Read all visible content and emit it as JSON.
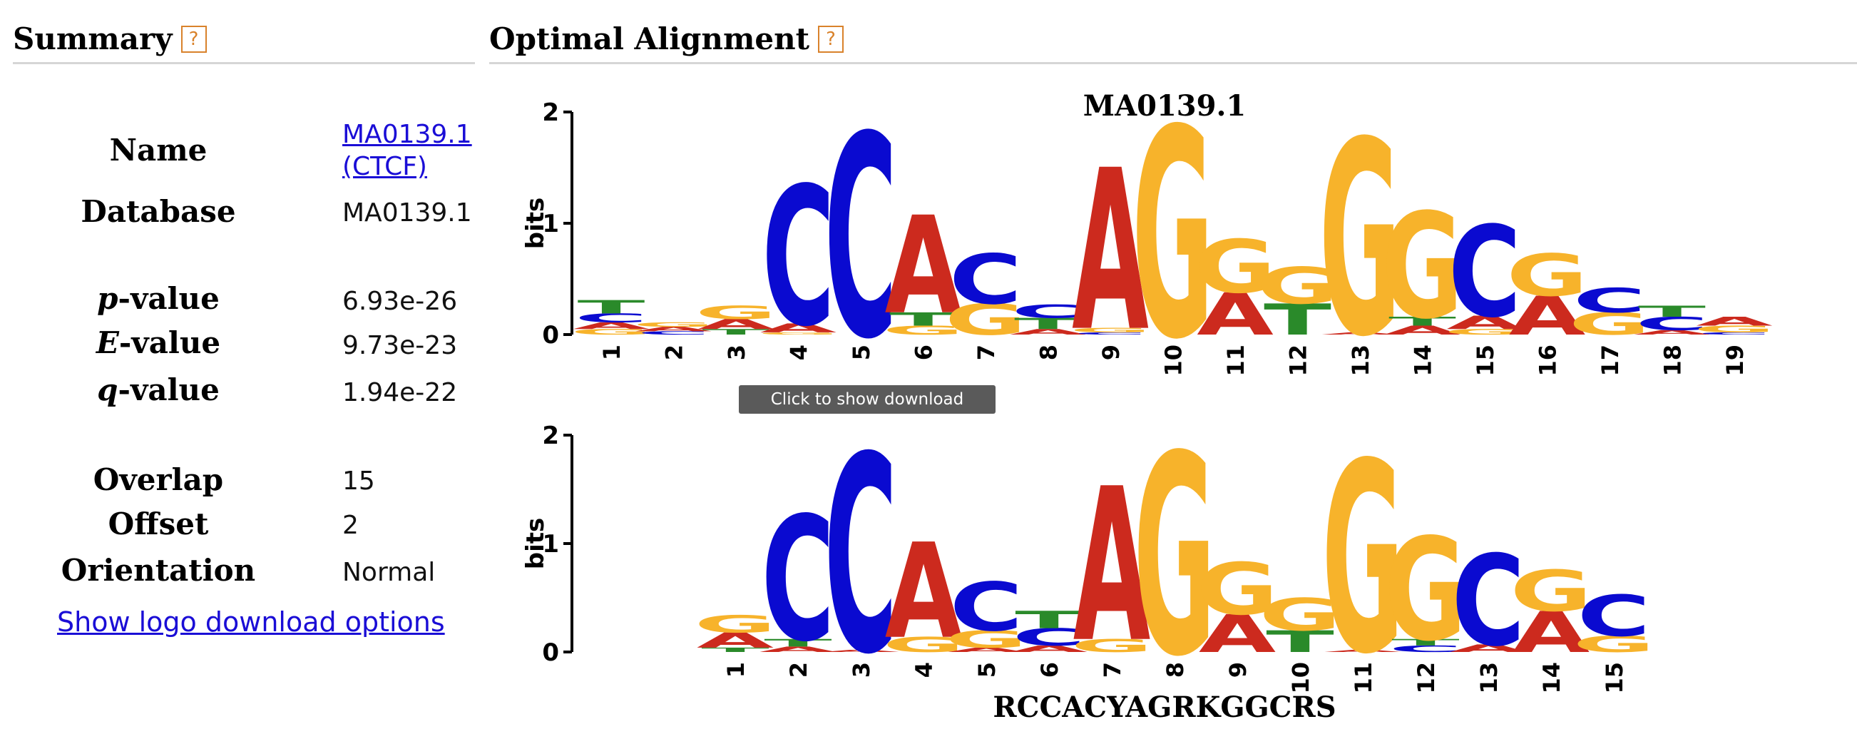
{
  "summary": {
    "title": "Summary",
    "help_glyph": "?",
    "name_label": "Name",
    "name_link_line1": "MA0139.1",
    "name_link_line2": "(CTCF)",
    "database_label": "Database",
    "database_value": "MA0139.1",
    "pvalue_prefix": "p",
    "pvalue_suffix": "-value",
    "pvalue": "6.93e-26",
    "evalue_prefix": "E",
    "evalue_suffix": "-value",
    "evalue": "9.73e-23",
    "qvalue_prefix": "q",
    "qvalue_suffix": "-value",
    "qvalue": "1.94e-22",
    "overlap_label": "Overlap",
    "overlap": "15",
    "offset_label": "Offset",
    "offset": "2",
    "orientation_label": "Orientation",
    "orientation": "Normal",
    "download_link": "Show logo download options"
  },
  "alignment": {
    "title": "Optimal Alignment",
    "help_glyph": "?",
    "tooltip": "Click to show download options",
    "colors": {
      "A": "#cc2a1e",
      "C": "#0a0ad0",
      "G": "#f7b32b",
      "T": "#2a8a2a"
    },
    "logos": [
      {
        "name": "top-logo",
        "title": "MA0139.1",
        "ylabel": "bits",
        "yticks": [
          "0",
          "1",
          "2"
        ],
        "subtitle": "",
        "positions": [
          {
            "label": "1",
            "stack": [
              [
                "G",
                0.05
              ],
              [
                "A",
                0.06
              ],
              [
                "C",
                0.08
              ],
              [
                "T",
                0.12
              ]
            ]
          },
          {
            "label": "2",
            "stack": [
              [
                "C",
                0.03
              ],
              [
                "A",
                0.04
              ],
              [
                "G",
                0.04
              ]
            ]
          },
          {
            "label": "3",
            "stack": [
              [
                "T",
                0.05
              ],
              [
                "A",
                0.09
              ],
              [
                "G",
                0.12
              ]
            ]
          },
          {
            "label": "4",
            "stack": [
              [
                "G",
                0.02
              ],
              [
                "A",
                0.08
              ],
              [
                "C",
                1.25
              ]
            ]
          },
          {
            "label": "5",
            "stack": [
              [
                "C",
                1.82
              ]
            ]
          },
          {
            "label": "6",
            "stack": [
              [
                "G",
                0.08
              ],
              [
                "T",
                0.12
              ],
              [
                "A",
                0.88
              ]
            ]
          },
          {
            "label": "7",
            "stack": [
              [
                "G",
                0.28
              ],
              [
                "C",
                0.45
              ]
            ]
          },
          {
            "label": "8",
            "stack": [
              [
                "A",
                0.05
              ],
              [
                "T",
                0.1
              ],
              [
                "C",
                0.12
              ]
            ]
          },
          {
            "label": "9",
            "stack": [
              [
                "C",
                0.02
              ],
              [
                "G",
                0.04
              ],
              [
                "A",
                1.45
              ]
            ]
          },
          {
            "label": "10",
            "stack": [
              [
                "G",
                1.88
              ]
            ]
          },
          {
            "label": "11",
            "stack": [
              [
                "A",
                0.38
              ],
              [
                "G",
                0.48
              ]
            ]
          },
          {
            "label": "12",
            "stack": [
              [
                "T",
                0.28
              ],
              [
                "G",
                0.33
              ]
            ]
          },
          {
            "label": "13",
            "stack": [
              [
                "A",
                0.02
              ],
              [
                "G",
                1.75
              ]
            ]
          },
          {
            "label": "14",
            "stack": [
              [
                "A",
                0.08
              ],
              [
                "T",
                0.08
              ],
              [
                "G",
                0.95
              ]
            ]
          },
          {
            "label": "15",
            "stack": [
              [
                "G",
                0.05
              ],
              [
                "A",
                0.12
              ],
              [
                "C",
                0.82
              ]
            ]
          },
          {
            "label": "16",
            "stack": [
              [
                "A",
                0.35
              ],
              [
                "G",
                0.38
              ]
            ]
          },
          {
            "label": "17",
            "stack": [
              [
                "G",
                0.2
              ],
              [
                "C",
                0.22
              ]
            ]
          },
          {
            "label": "18",
            "stack": [
              [
                "A",
                0.04
              ],
              [
                "C",
                0.12
              ],
              [
                "T",
                0.1
              ]
            ]
          },
          {
            "label": "19",
            "stack": [
              [
                "C",
                0.02
              ],
              [
                "G",
                0.06
              ],
              [
                "A",
                0.08
              ]
            ]
          }
        ]
      },
      {
        "name": "bottom-logo",
        "title": "",
        "ylabel": "bits",
        "yticks": [
          "0",
          "1",
          "2"
        ],
        "subtitle": "RCCACYAGRKGGCRS",
        "positions": [
          {
            "label": "1",
            "stack": [
              [
                "T",
                0.04
              ],
              [
                "A",
                0.14
              ],
              [
                "G",
                0.16
              ]
            ]
          },
          {
            "label": "2",
            "stack": [
              [
                "A",
                0.05
              ],
              [
                "T",
                0.07
              ],
              [
                "C",
                1.15
              ]
            ]
          },
          {
            "label": "3",
            "stack": [
              [
                "A",
                0.02
              ],
              [
                "C",
                1.82
              ]
            ]
          },
          {
            "label": "4",
            "stack": [
              [
                "G",
                0.14
              ],
              [
                "A",
                0.88
              ]
            ]
          },
          {
            "label": "5",
            "stack": [
              [
                "A",
                0.04
              ],
              [
                "G",
                0.16
              ],
              [
                "C",
                0.45
              ]
            ]
          },
          {
            "label": "6",
            "stack": [
              [
                "A",
                0.06
              ],
              [
                "C",
                0.16
              ],
              [
                "T",
                0.16
              ]
            ]
          },
          {
            "label": "7",
            "stack": [
              [
                "G",
                0.12
              ],
              [
                "A",
                1.42
              ]
            ]
          },
          {
            "label": "8",
            "stack": [
              [
                "G",
                1.85
              ]
            ]
          },
          {
            "label": "9",
            "stack": [
              [
                "A",
                0.35
              ],
              [
                "G",
                0.48
              ]
            ]
          },
          {
            "label": "10",
            "stack": [
              [
                "T",
                0.2
              ],
              [
                "G",
                0.3
              ]
            ]
          },
          {
            "label": "11",
            "stack": [
              [
                "A",
                0.02
              ],
              [
                "G",
                1.76
              ]
            ]
          },
          {
            "label": "12",
            "stack": [
              [
                "C",
                0.06
              ],
              [
                "T",
                0.06
              ],
              [
                "G",
                0.95
              ]
            ]
          },
          {
            "label": "13",
            "stack": [
              [
                "A",
                0.07
              ],
              [
                "C",
                0.84
              ]
            ]
          },
          {
            "label": "14",
            "stack": [
              [
                "A",
                0.38
              ],
              [
                "G",
                0.38
              ]
            ]
          },
          {
            "label": "15",
            "stack": [
              [
                "G",
                0.15
              ],
              [
                "C",
                0.38
              ]
            ]
          }
        ]
      }
    ]
  }
}
